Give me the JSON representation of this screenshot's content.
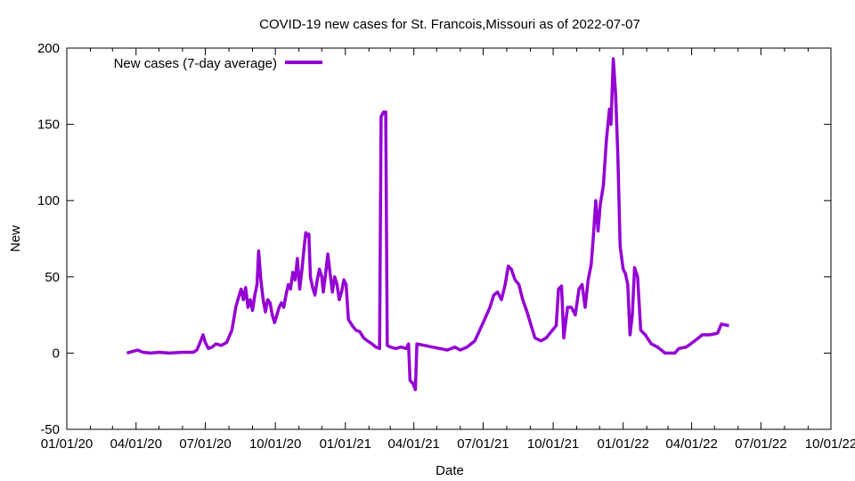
{
  "chart_data": {
    "type": "line",
    "title": "COVID-19 new cases for St. Francois,Missouri as of 2022-07-07",
    "xlabel": "Date",
    "ylabel": "New",
    "xlim": [
      "2020-01-01",
      "2022-10-01"
    ],
    "ylim": [
      -50,
      200
    ],
    "y_ticks": [
      -50,
      0,
      50,
      100,
      150,
      200
    ],
    "x_ticks": [
      {
        "date": "2020-01-01",
        "label": "01/01/20"
      },
      {
        "date": "2020-04-01",
        "label": "04/01/20"
      },
      {
        "date": "2020-07-01",
        "label": "07/01/20"
      },
      {
        "date": "2020-10-01",
        "label": "10/01/20"
      },
      {
        "date": "2021-01-01",
        "label": "01/01/21"
      },
      {
        "date": "2021-04-01",
        "label": "04/01/21"
      },
      {
        "date": "2021-07-01",
        "label": "07/01/21"
      },
      {
        "date": "2021-10-01",
        "label": "10/01/21"
      },
      {
        "date": "2022-01-01",
        "label": "01/01/22"
      },
      {
        "date": "2022-04-01",
        "label": "04/01/22"
      },
      {
        "date": "2022-07-01",
        "label": "07/01/22"
      },
      {
        "date": "2022-10-01",
        "label": "10/01/22"
      }
    ],
    "legend_placement": "top-left",
    "grid": false,
    "series": [
      {
        "name": "New cases (7-day average)",
        "color": "#9400d3",
        "points": [
          [
            "2020-03-20",
            0
          ],
          [
            "2020-03-27",
            1
          ],
          [
            "2020-04-03",
            2
          ],
          [
            "2020-04-10",
            0.5
          ],
          [
            "2020-04-20",
            0
          ],
          [
            "2020-05-01",
            0.5
          ],
          [
            "2020-05-15",
            0
          ],
          [
            "2020-06-01",
            0.5
          ],
          [
            "2020-06-15",
            0.5
          ],
          [
            "2020-06-20",
            2
          ],
          [
            "2020-06-25",
            8
          ],
          [
            "2020-06-28",
            12
          ],
          [
            "2020-07-01",
            7
          ],
          [
            "2020-07-05",
            3
          ],
          [
            "2020-07-10",
            4
          ],
          [
            "2020-07-15",
            6
          ],
          [
            "2020-07-22",
            5
          ],
          [
            "2020-07-29",
            7
          ],
          [
            "2020-08-05",
            15
          ],
          [
            "2020-08-10",
            30
          ],
          [
            "2020-08-14",
            37
          ],
          [
            "2020-08-17",
            42
          ],
          [
            "2020-08-20",
            35
          ],
          [
            "2020-08-23",
            43
          ],
          [
            "2020-08-26",
            30
          ],
          [
            "2020-08-29",
            35
          ],
          [
            "2020-09-01",
            28
          ],
          [
            "2020-09-04",
            38
          ],
          [
            "2020-09-07",
            45
          ],
          [
            "2020-09-09",
            67
          ],
          [
            "2020-09-12",
            48
          ],
          [
            "2020-09-15",
            35
          ],
          [
            "2020-09-18",
            27
          ],
          [
            "2020-09-21",
            35
          ],
          [
            "2020-09-24",
            33
          ],
          [
            "2020-09-27",
            25
          ],
          [
            "2020-09-30",
            20
          ],
          [
            "2020-10-03",
            25
          ],
          [
            "2020-10-06",
            30
          ],
          [
            "2020-10-09",
            33
          ],
          [
            "2020-10-12",
            30
          ],
          [
            "2020-10-15",
            38
          ],
          [
            "2020-10-18",
            45
          ],
          [
            "2020-10-21",
            42
          ],
          [
            "2020-10-24",
            53
          ],
          [
            "2020-10-27",
            48
          ],
          [
            "2020-10-30",
            62
          ],
          [
            "2020-11-02",
            42
          ],
          [
            "2020-11-05",
            55
          ],
          [
            "2020-11-08",
            70
          ],
          [
            "2020-11-10",
            79
          ],
          [
            "2020-11-12",
            77
          ],
          [
            "2020-11-14",
            78
          ],
          [
            "2020-11-16",
            50
          ],
          [
            "2020-11-19",
            43
          ],
          [
            "2020-11-22",
            38
          ],
          [
            "2020-11-25",
            48
          ],
          [
            "2020-11-28",
            55
          ],
          [
            "2020-12-01",
            50
          ],
          [
            "2020-12-03",
            40
          ],
          [
            "2020-12-06",
            52
          ],
          [
            "2020-12-09",
            65
          ],
          [
            "2020-12-12",
            52
          ],
          [
            "2020-12-15",
            40
          ],
          [
            "2020-12-18",
            50
          ],
          [
            "2020-12-21",
            45
          ],
          [
            "2020-12-24",
            35
          ],
          [
            "2020-12-27",
            40
          ],
          [
            "2020-12-30",
            48
          ],
          [
            "2021-01-02",
            45
          ],
          [
            "2021-01-05",
            22
          ],
          [
            "2021-01-10",
            18
          ],
          [
            "2021-01-15",
            15
          ],
          [
            "2021-01-20",
            14
          ],
          [
            "2021-01-25",
            10
          ],
          [
            "2021-01-30",
            8
          ],
          [
            "2021-02-05",
            6
          ],
          [
            "2021-02-10",
            4
          ],
          [
            "2021-02-15",
            3
          ],
          [
            "2021-02-17",
            155
          ],
          [
            "2021-02-20",
            158
          ],
          [
            "2021-02-23",
            158
          ],
          [
            "2021-02-25",
            5
          ],
          [
            "2021-03-01",
            4
          ],
          [
            "2021-03-08",
            3
          ],
          [
            "2021-03-15",
            4
          ],
          [
            "2021-03-22",
            3
          ],
          [
            "2021-03-25",
            6
          ],
          [
            "2021-03-27",
            -18
          ],
          [
            "2021-03-31",
            -20
          ],
          [
            "2021-04-03",
            -24
          ],
          [
            "2021-04-05",
            6
          ],
          [
            "2021-04-15",
            5
          ],
          [
            "2021-04-25",
            4
          ],
          [
            "2021-05-05",
            3
          ],
          [
            "2021-05-15",
            2
          ],
          [
            "2021-05-25",
            4
          ],
          [
            "2021-06-01",
            2
          ],
          [
            "2021-06-10",
            4
          ],
          [
            "2021-06-20",
            8
          ],
          [
            "2021-07-01",
            20
          ],
          [
            "2021-07-10",
            30
          ],
          [
            "2021-07-15",
            38
          ],
          [
            "2021-07-20",
            40
          ],
          [
            "2021-07-25",
            35
          ],
          [
            "2021-07-30",
            45
          ],
          [
            "2021-08-03",
            57
          ],
          [
            "2021-08-07",
            55
          ],
          [
            "2021-08-12",
            48
          ],
          [
            "2021-08-17",
            45
          ],
          [
            "2021-08-22",
            35
          ],
          [
            "2021-08-27",
            28
          ],
          [
            "2021-09-01",
            20
          ],
          [
            "2021-09-07",
            10
          ],
          [
            "2021-09-15",
            8
          ],
          [
            "2021-09-22",
            10
          ],
          [
            "2021-09-30",
            15
          ],
          [
            "2021-10-05",
            18
          ],
          [
            "2021-10-08",
            42
          ],
          [
            "2021-10-12",
            44
          ],
          [
            "2021-10-15",
            10
          ],
          [
            "2021-10-20",
            30
          ],
          [
            "2021-10-25",
            30
          ],
          [
            "2021-10-30",
            25
          ],
          [
            "2021-11-04",
            42
          ],
          [
            "2021-11-08",
            45
          ],
          [
            "2021-11-12",
            30
          ],
          [
            "2021-11-16",
            48
          ],
          [
            "2021-11-20",
            58
          ],
          [
            "2021-11-23",
            78
          ],
          [
            "2021-11-26",
            100
          ],
          [
            "2021-11-29",
            80
          ],
          [
            "2021-12-02",
            98
          ],
          [
            "2021-12-06",
            110
          ],
          [
            "2021-12-10",
            140
          ],
          [
            "2021-12-14",
            160
          ],
          [
            "2021-12-16",
            150
          ],
          [
            "2021-12-19",
            193
          ],
          [
            "2021-12-22",
            170
          ],
          [
            "2021-12-25",
            130
          ],
          [
            "2021-12-28",
            70
          ],
          [
            "2022-01-01",
            55
          ],
          [
            "2022-01-04",
            52
          ],
          [
            "2022-01-07",
            45
          ],
          [
            "2022-01-10",
            12
          ],
          [
            "2022-01-13",
            25
          ],
          [
            "2022-01-16",
            56
          ],
          [
            "2022-01-20",
            50
          ],
          [
            "2022-01-24",
            15
          ],
          [
            "2022-01-30",
            12
          ],
          [
            "2022-02-07",
            6
          ],
          [
            "2022-02-15",
            4
          ],
          [
            "2022-02-25",
            0
          ],
          [
            "2022-03-10",
            0
          ],
          [
            "2022-03-15",
            3
          ],
          [
            "2022-03-25",
            4
          ],
          [
            "2022-04-05",
            8
          ],
          [
            "2022-04-15",
            12
          ],
          [
            "2022-04-25",
            12
          ],
          [
            "2022-05-05",
            13
          ],
          [
            "2022-05-10",
            19
          ],
          [
            "2022-05-20",
            18
          ]
        ]
      }
    ]
  }
}
